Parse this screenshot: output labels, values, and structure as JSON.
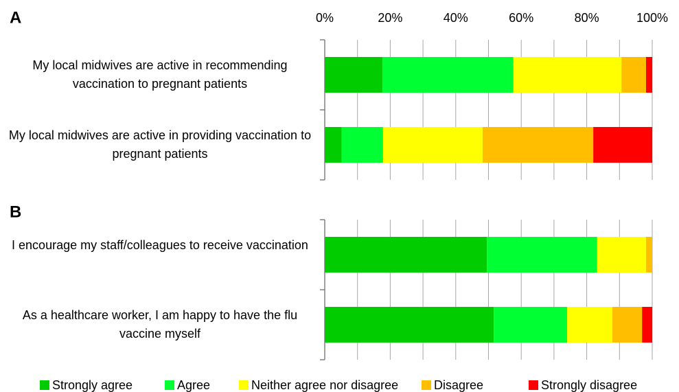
{
  "chart_data": [
    {
      "type": "stacked-bar",
      "label": "A",
      "categories": [
        "My local midwives are active in recommending vaccination to pregnant patients",
        "My local midwives are active in providing vaccination to pregnant patients"
      ],
      "series": [
        {
          "name": "Strongly agree",
          "color": "#00cc00",
          "values": [
            17.6,
            5.2
          ]
        },
        {
          "name": "Agree",
          "color": "#00ff33",
          "values": [
            40.0,
            12.6
          ]
        },
        {
          "name": "Neither agree nor disagree",
          "color": "#ffff00",
          "values": [
            33.0,
            30.4
          ]
        },
        {
          "name": "Disagree",
          "color": "#ffbf00",
          "values": [
            7.5,
            33.8
          ]
        },
        {
          "name": "Strongly disagree",
          "color": "#ff0000",
          "values": [
            1.9,
            18.0
          ]
        }
      ],
      "xlim": [
        0,
        100
      ],
      "xticks": [
        {
          "value": 0,
          "label": "0%"
        },
        {
          "value": 20,
          "label": "20%"
        },
        {
          "value": 40,
          "label": "40%"
        },
        {
          "value": 60,
          "label": "60%"
        },
        {
          "value": 80,
          "label": "80%"
        },
        {
          "value": 100,
          "label": "100%"
        }
      ],
      "grid_x": [
        0,
        10,
        20,
        30,
        40,
        50,
        60,
        70,
        80,
        90,
        100
      ]
    },
    {
      "type": "stacked-bar",
      "label": "B",
      "categories": [
        "I encourage my staff/colleagues to receive vaccination",
        "As a healthcare worker, I am happy to have the flu vaccine myself"
      ],
      "series": [
        {
          "values": [
            49.5,
            51.6
          ]
        },
        {
          "values": [
            33.7,
            22.4
          ]
        },
        {
          "values": [
            14.9,
            13.8
          ]
        },
        {
          "values": [
            1.9,
            9.1
          ]
        },
        {
          "values": [
            0,
            3.1
          ]
        }
      ],
      "xlim": [
        0,
        100
      ],
      "grid_x": [
        0,
        10,
        20,
        30,
        40,
        50,
        60,
        70,
        80,
        90,
        100
      ]
    }
  ]
}
